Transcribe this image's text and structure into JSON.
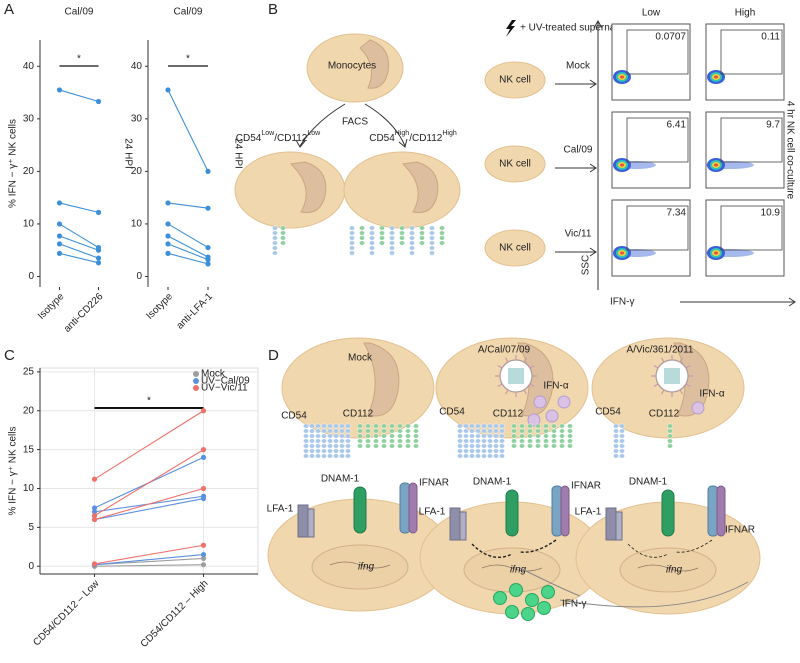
{
  "panels": [
    "A",
    "B",
    "C",
    "D"
  ],
  "chart_data": [
    {
      "type": "line",
      "title": "Cal/09",
      "categories": [
        "Isotype",
        "anti-CD226"
      ],
      "y_label": "% IFN − γ⁺ NK cells",
      "side_label": "24 HPI",
      "significance": "*",
      "color": "#3d8fd9",
      "ylim": [
        -2,
        45
      ],
      "yticks": [
        0,
        10,
        20,
        30,
        40
      ],
      "series": [
        {
          "values": [
            35.5,
            33.3
          ]
        },
        {
          "values": [
            14,
            12.2
          ]
        },
        {
          "values": [
            10,
            5.5
          ]
        },
        {
          "values": [
            7.7,
            5
          ]
        },
        {
          "values": [
            6.2,
            3.5
          ]
        },
        {
          "values": [
            4.4,
            2.6
          ]
        }
      ]
    },
    {
      "type": "line",
      "title": "Cal/09",
      "categories": [
        "Isotype",
        "anti-LFA-1"
      ],
      "side_label": "24 HPI",
      "significance": "*",
      "color": "#3d8fd9",
      "ylim": [
        -2,
        45
      ],
      "yticks": [
        0,
        10,
        20,
        30,
        40
      ],
      "series": [
        {
          "values": [
            35.5,
            20
          ]
        },
        {
          "values": [
            14,
            13
          ]
        },
        {
          "values": [
            10,
            5.5
          ]
        },
        {
          "values": [
            7.7,
            3.7
          ]
        },
        {
          "values": [
            6.2,
            3.2
          ]
        },
        {
          "values": [
            4.4,
            2.4
          ]
        }
      ]
    },
    {
      "type": "line",
      "categories": [
        "CD54/CD112 – Low",
        "CD54/CD112 – High"
      ],
      "y_label": "% IFN − γ⁺ NK cells",
      "significance": "*",
      "grid": true,
      "legend": "top-right",
      "ylim": [
        -1,
        25.5
      ],
      "yticks": [
        0,
        5,
        10,
        15,
        20,
        25
      ],
      "series": [
        {
          "name": "Mock",
          "color": "#9e9e9e",
          "values": [
            [
              0.2,
              1.0
            ],
            [
              0,
              0.2
            ]
          ]
        },
        {
          "name": "UV−Cal/09",
          "color": "#5b8fe0",
          "values": [
            [
              7.5,
              14
            ],
            [
              7,
              9
            ],
            [
              6,
              8.7
            ],
            [
              0.2,
              1.5
            ]
          ]
        },
        {
          "name": "UV−Vic/11",
          "color": "#f0706a",
          "values": [
            [
              11.2,
              20
            ],
            [
              6.5,
              15
            ],
            [
              6,
              10
            ],
            [
              0.3,
              2.7
            ]
          ]
        }
      ]
    }
  ],
  "panel_b": {
    "monocytes": "Monocytes",
    "facs": "FACS",
    "low_label": {
      "a": "CD54",
      "b": "Low",
      "c": "/CD112",
      "d": "Low"
    },
    "high_label": {
      "a": "CD54",
      "b": "High",
      "c": "/CD112",
      "d": "High"
    },
    "treatment": "+ UV-treated supernatant",
    "columns": [
      "Low",
      "High"
    ],
    "nk_cell": "NK cell",
    "conditions": [
      "Mock",
      "Cal/09",
      "Vic/11"
    ],
    "y_axis": "SSC",
    "x_axis": "IFN-γ",
    "side": "4 hr NK cell co-culture",
    "gate_values": [
      [
        "0.0707",
        "0.11"
      ],
      [
        "6.41",
        "9.7"
      ],
      [
        "7.34",
        "10.9"
      ]
    ]
  },
  "panel_d": {
    "cells": [
      "Mock",
      "A/Cal/07/09",
      "A/Vic/361/2011"
    ],
    "cd54": "CD54",
    "cd112": "CD112",
    "ifn_alpha": "IFN-α",
    "lfa1": "LFA-1",
    "dnam1": "DNAM-1",
    "ifnar": "IFNAR",
    "ifng": "ifng",
    "ifn_gamma": "IFN-γ"
  }
}
